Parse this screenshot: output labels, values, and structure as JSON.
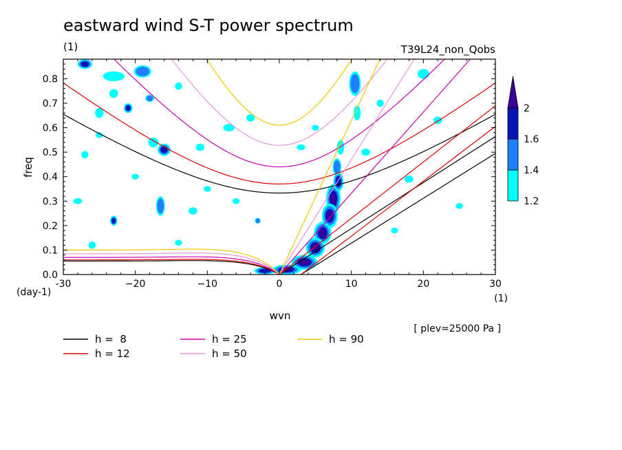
{
  "chart_data": {
    "type": "heatmap",
    "title": "eastward wind S-T power spectrum",
    "subtitle_left": "(1)",
    "subtitle_right": "T39L24_non_Qobs",
    "xlabel": "wvn",
    "ylabel": "freq",
    "x_unit_label": "(1)",
    "y_unit_label": "(day-1)",
    "xlim": [
      -30,
      30
    ],
    "ylim": [
      0,
      0.88
    ],
    "xticks": [
      -30,
      -20,
      -10,
      0,
      10,
      20,
      30
    ],
    "xtick_labels": [
      "-30",
      "−20",
      "−10",
      "0",
      "10",
      "20",
      "30"
    ],
    "yticks": [
      0.0,
      0.1,
      0.2,
      0.3,
      0.4,
      0.5,
      0.6,
      0.7,
      0.8
    ],
    "ytick_labels": [
      "0.0",
      "0.1",
      "0.2",
      "0.3",
      "0.4",
      "0.5",
      "0.6",
      "0.7",
      "0.8"
    ],
    "level_note": "[ plev=25000 Pa ]",
    "colorbar": {
      "levels": [
        1.2,
        1.4,
        1.6,
        2
      ],
      "level_labels": [
        "1.2",
        "1.4",
        "1.6",
        "2"
      ],
      "colors": [
        "#00ffff",
        "#1e7fff",
        "#0a14b4",
        "#3c0096"
      ]
    },
    "dispersion_curves": [
      {
        "label": "h =  8",
        "h": 8,
        "color": "#000000"
      },
      {
        "label": "h = 12",
        "h": 12,
        "color": "#dc0000"
      },
      {
        "label": "h = 25",
        "h": 25,
        "color": "#c800b4"
      },
      {
        "label": "h = 50",
        "h": 50,
        "color": "#e696dc"
      },
      {
        "label": "h = 90",
        "h": 90,
        "color": "#f0c800"
      }
    ],
    "kelvin_slopes_per_wvn": {
      "8": 0.0188,
      "12": 0.023,
      "25": 0.0332,
      "50": 0.047,
      "90": 0.063
    },
    "ig_min_freq": {
      "8": 0.333,
      "12": 0.37,
      "25": 0.44,
      "50": 0.528,
      "90": 0.61
    },
    "mrg_asymptote_freq": {
      "8": 0.055,
      "12": 0.06,
      "25": 0.07,
      "50": 0.085,
      "90": 0.1
    },
    "blobs": [
      {
        "x": 7.5,
        "y": 0.31,
        "rx": 1.0,
        "ry": 0.06,
        "level": 3
      },
      {
        "x": 7.0,
        "y": 0.24,
        "rx": 1.1,
        "ry": 0.05,
        "level": 3
      },
      {
        "x": 6.0,
        "y": 0.17,
        "rx": 1.2,
        "ry": 0.045,
        "level": 3
      },
      {
        "x": 5.0,
        "y": 0.11,
        "rx": 1.3,
        "ry": 0.04,
        "level": 3
      },
      {
        "x": 3.5,
        "y": 0.05,
        "rx": 1.8,
        "ry": 0.03,
        "level": 3
      },
      {
        "x": 1.0,
        "y": 0.02,
        "rx": 2.0,
        "ry": 0.02,
        "level": 3
      },
      {
        "x": -2.0,
        "y": 0.015,
        "rx": 1.5,
        "ry": 0.015,
        "level": 2
      },
      {
        "x": 8.2,
        "y": 0.38,
        "rx": 0.7,
        "ry": 0.04,
        "level": 2
      },
      {
        "x": 8.0,
        "y": 0.44,
        "rx": 0.6,
        "ry": 0.035,
        "level": 1
      },
      {
        "x": 8.5,
        "y": 0.52,
        "rx": 0.5,
        "ry": 0.03,
        "level": 0
      },
      {
        "x": 10.5,
        "y": 0.78,
        "rx": 0.8,
        "ry": 0.05,
        "level": 1
      },
      {
        "x": 10.8,
        "y": 0.66,
        "rx": 0.5,
        "ry": 0.03,
        "level": 0
      },
      {
        "x": -27.0,
        "y": 0.86,
        "rx": 1.0,
        "ry": 0.02,
        "level": 2
      },
      {
        "x": -23.0,
        "y": 0.81,
        "rx": 1.5,
        "ry": 0.02,
        "level": 0
      },
      {
        "x": -19.0,
        "y": 0.83,
        "rx": 1.2,
        "ry": 0.025,
        "level": 1
      },
      {
        "x": -21.0,
        "y": 0.68,
        "rx": 0.6,
        "ry": 0.02,
        "level": 2
      },
      {
        "x": -16.0,
        "y": 0.51,
        "rx": 0.9,
        "ry": 0.025,
        "level": 2
      },
      {
        "x": -17.5,
        "y": 0.54,
        "rx": 0.7,
        "ry": 0.02,
        "level": 0
      },
      {
        "x": -16.5,
        "y": 0.28,
        "rx": 0.6,
        "ry": 0.04,
        "level": 1
      },
      {
        "x": -23.0,
        "y": 0.22,
        "rx": 0.5,
        "ry": 0.02,
        "level": 2
      },
      {
        "x": -27.0,
        "y": 0.49,
        "rx": 0.5,
        "ry": 0.015,
        "level": 0
      },
      {
        "x": -25.0,
        "y": 0.66,
        "rx": 0.6,
        "ry": 0.02,
        "level": 0
      },
      {
        "x": -23.0,
        "y": 0.74,
        "rx": 0.6,
        "ry": 0.018,
        "level": 0
      },
      {
        "x": -14.0,
        "y": 0.77,
        "rx": 0.5,
        "ry": 0.015,
        "level": 0
      },
      {
        "x": -7.0,
        "y": 0.6,
        "rx": 0.8,
        "ry": 0.015,
        "level": 0
      },
      {
        "x": -4.0,
        "y": 0.64,
        "rx": 0.6,
        "ry": 0.015,
        "level": 0
      },
      {
        "x": -11.0,
        "y": 0.52,
        "rx": 0.6,
        "ry": 0.015,
        "level": 0
      },
      {
        "x": -12.0,
        "y": 0.26,
        "rx": 0.6,
        "ry": 0.015,
        "level": 0
      },
      {
        "x": -3.0,
        "y": 0.22,
        "rx": 0.4,
        "ry": 0.012,
        "level": 1
      },
      {
        "x": -26.0,
        "y": 0.12,
        "rx": 0.5,
        "ry": 0.015,
        "level": 0
      },
      {
        "x": -28.0,
        "y": 0.3,
        "rx": 0.6,
        "ry": 0.012,
        "level": 0
      },
      {
        "x": -10.0,
        "y": 0.35,
        "rx": 0.5,
        "ry": 0.012,
        "level": 0
      },
      {
        "x": -6.0,
        "y": 0.3,
        "rx": 0.5,
        "ry": 0.012,
        "level": 0
      },
      {
        "x": 3.0,
        "y": 0.52,
        "rx": 0.6,
        "ry": 0.012,
        "level": 0
      },
      {
        "x": 12.0,
        "y": 0.5,
        "rx": 0.6,
        "ry": 0.015,
        "level": 0
      },
      {
        "x": 14.0,
        "y": 0.7,
        "rx": 0.5,
        "ry": 0.015,
        "level": 0
      },
      {
        "x": 20.0,
        "y": 0.82,
        "rx": 0.8,
        "ry": 0.02,
        "level": 0
      },
      {
        "x": 22.0,
        "y": 0.63,
        "rx": 0.6,
        "ry": 0.015,
        "level": 0
      },
      {
        "x": 18.0,
        "y": 0.39,
        "rx": 0.6,
        "ry": 0.015,
        "level": 0
      },
      {
        "x": 25.0,
        "y": 0.28,
        "rx": 0.5,
        "ry": 0.012,
        "level": 0
      },
      {
        "x": 16.0,
        "y": 0.18,
        "rx": 0.5,
        "ry": 0.012,
        "level": 0
      },
      {
        "x": 5.0,
        "y": 0.6,
        "rx": 0.5,
        "ry": 0.012,
        "level": 0
      },
      {
        "x": -18.0,
        "y": 0.72,
        "rx": 0.6,
        "ry": 0.015,
        "level": 1
      },
      {
        "x": -20.0,
        "y": 0.4,
        "rx": 0.5,
        "ry": 0.012,
        "level": 0
      },
      {
        "x": -25.0,
        "y": 0.57,
        "rx": 0.5,
        "ry": 0.012,
        "level": 0
      },
      {
        "x": -14.0,
        "y": 0.13,
        "rx": 0.5,
        "ry": 0.012,
        "level": 0
      }
    ]
  }
}
